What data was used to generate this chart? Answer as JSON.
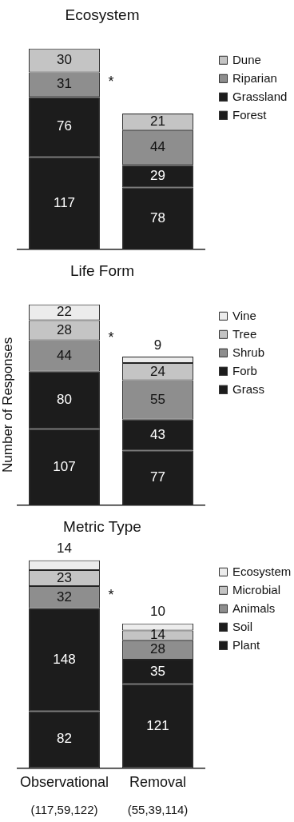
{
  "chart_data": [
    {
      "type": "bar",
      "title": "Ecosystem",
      "categories": [
        null,
        null
      ],
      "stacked": true,
      "legend": "top right",
      "tick_labels": false,
      "annotations": [
        "*"
      ],
      "series": [
        {
          "name": "Forest",
          "color": "#1c1c1c",
          "values": [
            117,
            78
          ]
        },
        {
          "name": "Grassland",
          "color": "#1c1c1c",
          "values": [
            76,
            29
          ]
        },
        {
          "name": "Riparian",
          "color": "#8e8e8e",
          "values": [
            31,
            44
          ]
        },
        {
          "name": "Dune",
          "color": "#c4c4c4",
          "values": [
            30,
            21
          ]
        }
      ],
      "data_labels": true
    },
    {
      "type": "bar",
      "title": "Life Form",
      "ylabel": "Number of Responses",
      "categories": [
        null,
        null
      ],
      "stacked": true,
      "legend": "top right",
      "tick_labels": false,
      "annotations": [
        "*"
      ],
      "series": [
        {
          "name": "Grass",
          "color": "#1c1c1c",
          "values": [
            107,
            77
          ]
        },
        {
          "name": "Forb",
          "color": "#1c1c1c",
          "values": [
            80,
            43
          ]
        },
        {
          "name": "Shrub",
          "color": "#8e8e8e",
          "values": [
            44,
            55
          ]
        },
        {
          "name": "Tree",
          "color": "#c4c4c4",
          "values": [
            28,
            24
          ]
        },
        {
          "name": "Vine",
          "color": "#ececec",
          "values": [
            22,
            9
          ]
        }
      ],
      "data_labels": true
    },
    {
      "type": "bar",
      "title": "Metric Type",
      "categories": [
        "Observational",
        "Removal"
      ],
      "stacked": true,
      "legend": "top right",
      "annotations": [
        "*",
        "(117,59,122)",
        "(55,39,114)"
      ],
      "series": [
        {
          "name": "Plant",
          "color": "#1c1c1c",
          "values": [
            82,
            121
          ]
        },
        {
          "name": "Soil",
          "color": "#1c1c1c",
          "values": [
            148,
            35
          ]
        },
        {
          "name": "Animals",
          "color": "#8e8e8e",
          "values": [
            32,
            28
          ]
        },
        {
          "name": "Microbial",
          "color": "#c4c4c4",
          "values": [
            23,
            14
          ]
        },
        {
          "name": "Ecosystem",
          "color": "#ececec",
          "values": [
            14,
            10
          ]
        }
      ],
      "data_labels": true
    }
  ]
}
